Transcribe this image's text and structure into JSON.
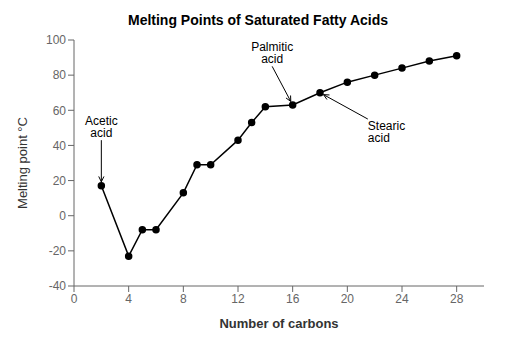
{
  "chart_data": {
    "type": "line",
    "title": "Melting Points of Saturated Fatty Acids",
    "xlabel": "Number of carbons",
    "ylabel": "Melting point °C",
    "x": [
      2,
      4,
      5,
      6,
      8,
      9,
      10,
      12,
      13,
      14,
      16,
      18,
      20,
      22,
      24,
      26,
      28
    ],
    "values": [
      17,
      -23,
      -8,
      -8,
      13,
      29,
      29,
      43,
      53,
      62,
      63,
      70,
      76,
      80,
      84,
      88,
      91
    ],
    "xlim": [
      0,
      30
    ],
    "ylim": [
      -40,
      100
    ],
    "xticks": [
      0,
      4,
      8,
      12,
      16,
      20,
      24,
      28
    ],
    "yticks": [
      -40,
      -20,
      0,
      20,
      40,
      60,
      80,
      100
    ],
    "color": "#000000",
    "marker": "circle",
    "grid": false,
    "annotations": [
      {
        "text": "Acetic\nacid",
        "xy": [
          2,
          17
        ],
        "xytext": [
          2.0,
          43
        ]
      },
      {
        "text": "Palmitic\nacid",
        "xy": [
          16,
          63
        ],
        "xytext": [
          14.5,
          85
        ]
      },
      {
        "text": "Stearic\nacid",
        "xy": [
          18,
          70
        ],
        "xytext": [
          21.5,
          55
        ]
      }
    ]
  }
}
